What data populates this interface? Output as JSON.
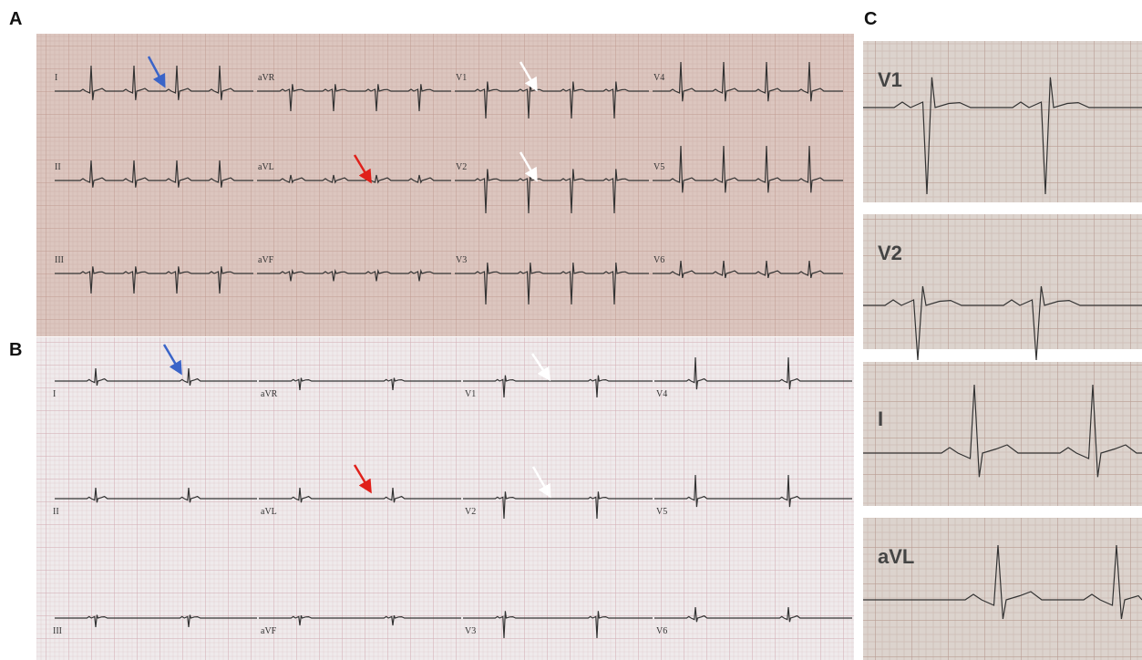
{
  "panels": [
    {
      "label": "A",
      "leads": [
        "I",
        "aVR",
        "V1",
        "V4",
        "II",
        "aVL",
        "V2",
        "V5",
        "III",
        "aVF",
        "V3",
        "V6"
      ]
    },
    {
      "label": "B",
      "leads": [
        "I",
        "aVR",
        "V1",
        "V4",
        "II",
        "aVL",
        "V2",
        "V5",
        "III",
        "aVF",
        "V3",
        "V6"
      ]
    },
    {
      "label": "C",
      "leads": [
        "V1",
        "V2",
        "I",
        "aVL"
      ]
    }
  ]
}
